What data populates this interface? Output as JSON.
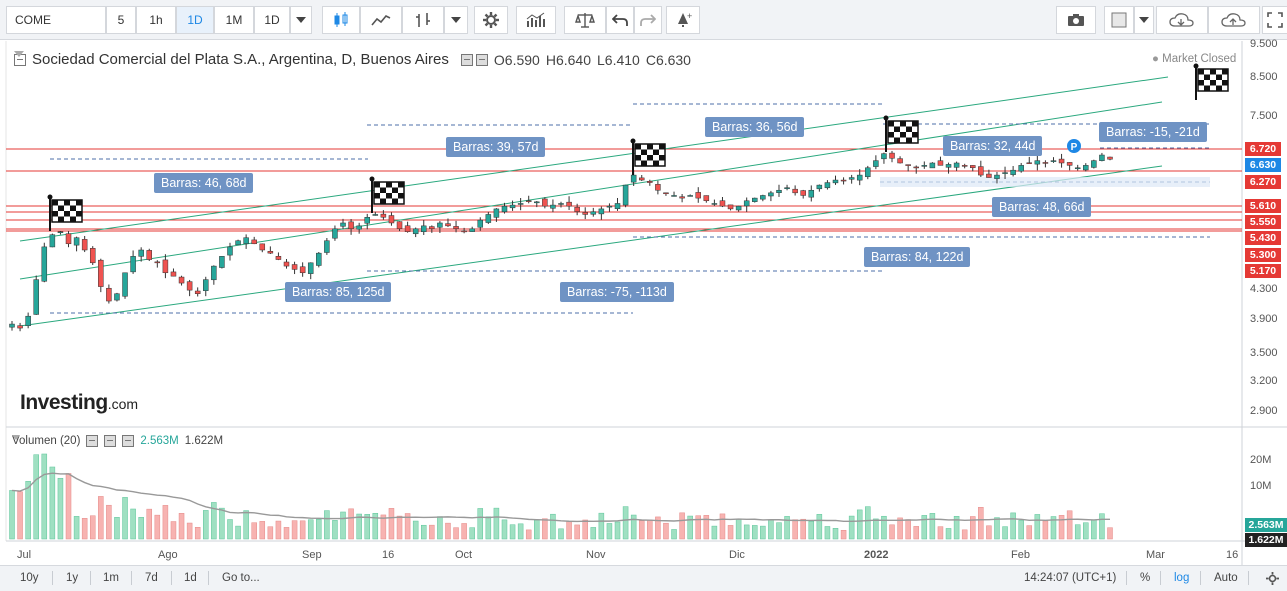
{
  "toolbar": {
    "symbol": "COME",
    "intervals": [
      "5",
      "1h",
      "1D",
      "1M",
      "1D"
    ],
    "active_interval_index": 2,
    "icons": [
      "candles-icon",
      "line-chart-icon",
      "bars-icon",
      "settings-icon",
      "studies-icon",
      "scale-icon",
      "undo-icon",
      "redo-icon",
      "alert-icon",
      "camera-icon",
      "template-icon",
      "cloud-save-icon",
      "cloud-load-icon",
      "fullscreen-icon"
    ]
  },
  "legend": {
    "title": "Sociedad Comercial del Plata S.A., Argentina, D, Buenos Aires",
    "open": "O6.590",
    "high": "H6.640",
    "low": "L6.410",
    "close": "C6.630",
    "market_status": "Market Closed"
  },
  "watermark": {
    "brand": "Investing",
    "suffix": ".com"
  },
  "annotations": [
    "Barras: 46, 68d",
    "Barras: 39, 57d",
    "Barras: 36, 56d",
    "Barras: 32, 44d",
    "Barras: -15, -21d",
    "Barras: 48, 66d",
    "Barras: 85, 125d",
    "Barras: -75, -113d",
    "Barras: 84, 122d"
  ],
  "price_axis": [
    "9.500",
    "8.500",
    "7.500",
    "6.720",
    "6.630",
    "6.270",
    "5.610",
    "5.550",
    "5.430",
    "5.300",
    "5.170",
    "4.300",
    "3.900",
    "3.500",
    "3.200",
    "2.900"
  ],
  "price_tags": {
    "levels": [
      "6.720",
      "6.630",
      "6.270",
      "5.610",
      "5.550",
      "5.430",
      "5.300",
      "5.170"
    ],
    "colors": [
      "#e53935",
      "#1e88e5",
      "#e53935",
      "#e53935",
      "#e53935",
      "#e53935",
      "#e53935",
      "#e53935"
    ]
  },
  "volume": {
    "title": "Volumen (20)",
    "value1": "2.563M",
    "value2": "1.622M",
    "axis": [
      "20M",
      "10M"
    ],
    "tag_current": "2.563M",
    "tag_ma": "1.622M"
  },
  "time_axis": [
    "Jul",
    "Ago",
    "Sep",
    "16",
    "Oct",
    "Nov",
    "Dic",
    "2022",
    "Feb",
    "Mar",
    "16"
  ],
  "bottombar": {
    "ranges": [
      "10y",
      "1y",
      "1m",
      "7d",
      "1d"
    ],
    "goto": "Go to...",
    "time": "14:24:07 (UTC+1)",
    "percent": "%",
    "log": "log",
    "auto": "Auto"
  },
  "colors": {
    "up": "#26a69a",
    "down": "#ef5350",
    "label": "#6f93c4",
    "channel": "#2aa87e",
    "hline": "#e53935"
  },
  "chart_data": {
    "type": "candlestick",
    "title": "Sociedad Comercial del Plata S.A., Argentina, D, Buenos Aires",
    "last": {
      "open": 6.59,
      "high": 6.64,
      "low": 6.41,
      "close": 6.63
    },
    "closes": [
      3.9,
      3.85,
      4.0,
      4.5,
      5.0,
      5.2,
      5.25,
      5.05,
      5.15,
      4.95,
      4.75,
      4.4,
      4.2,
      4.3,
      4.6,
      4.85,
      4.95,
      4.8,
      4.75,
      4.6,
      4.55,
      4.45,
      4.35,
      4.3,
      4.5,
      4.7,
      4.85,
      5.0,
      5.1,
      5.15,
      5.05,
      4.95,
      4.9,
      4.8,
      4.7,
      4.65,
      4.6,
      4.75,
      4.9,
      5.1,
      5.3,
      5.4,
      5.3,
      5.35,
      5.5,
      5.55,
      5.5,
      5.4,
      5.3,
      5.25,
      5.3,
      5.35,
      5.3,
      5.4,
      5.35,
      5.3,
      5.25,
      5.3,
      5.45,
      5.55,
      5.65,
      5.7,
      5.72,
      5.75,
      5.8,
      5.78,
      5.7,
      5.72,
      5.75,
      5.7,
      5.6,
      5.55,
      5.6,
      5.65,
      5.7,
      5.75,
      6.1,
      6.3,
      6.2,
      6.15,
      6.0,
      5.95,
      5.9,
      5.85,
      5.9,
      5.85,
      5.8,
      5.75,
      5.7,
      5.65,
      5.7,
      5.8,
      5.85,
      5.9,
      5.95,
      6.0,
      6.05,
      5.95,
      5.9,
      6.0,
      6.1,
      6.15,
      6.2,
      6.18,
      6.25,
      6.3,
      6.45,
      6.6,
      6.75,
      6.65,
      6.55,
      6.5,
      6.45,
      6.5,
      6.55,
      6.5,
      6.52,
      6.55,
      6.5,
      6.45,
      6.3,
      6.25,
      6.3,
      6.35,
      6.4,
      6.5,
      6.55,
      6.6,
      6.55,
      6.6,
      6.55,
      6.5,
      6.45,
      6.5,
      6.6,
      6.72,
      6.63
    ],
    "price_range": [
      2.8,
      9.7
    ],
    "price_scale": "log",
    "volume_axis": [
      "20M",
      "10M"
    ],
    "x_labels": [
      "Jul",
      "Ago",
      "Sep",
      "16",
      "Oct",
      "Nov",
      "Dic",
      "2022",
      "Feb",
      "Mar",
      "16"
    ],
    "horizontal_levels": [
      6.72,
      6.27,
      5.61,
      5.55,
      5.43,
      5.3,
      5.17
    ]
  }
}
